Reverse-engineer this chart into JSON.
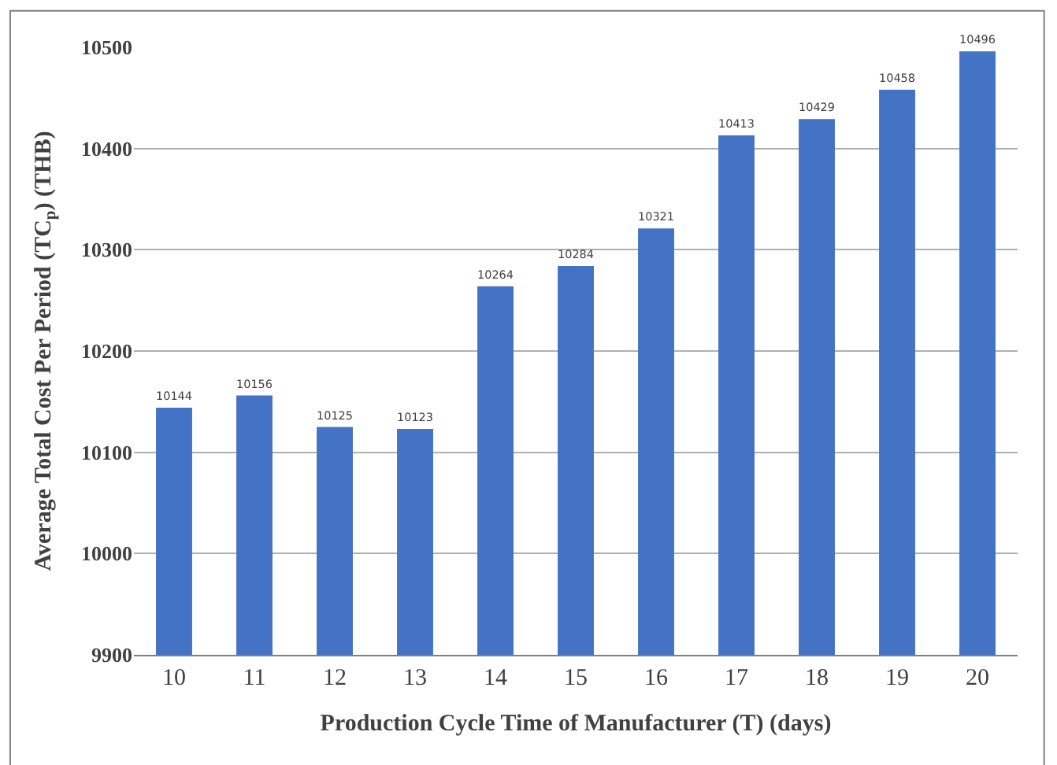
{
  "chart_data": {
    "type": "bar",
    "xlabel": "Production Cycle Time of Manufacturer (T) (days)",
    "ylabel": "Average Total Cost Per Period (TC$_{p}$) (THB)",
    "categories": [
      "10",
      "11",
      "12",
      "13",
      "14",
      "15",
      "16",
      "17",
      "18",
      "19",
      "20"
    ],
    "values": [
      10144,
      10156,
      10125,
      10123,
      10264,
      10284,
      10321,
      10413,
      10429,
      10458,
      10496
    ],
    "color": "#4472c4",
    "ylim": [
      9900,
      10500
    ],
    "yticks": [
      9900,
      10000,
      10100,
      10200,
      10300,
      10400,
      10500
    ],
    "grid": "y",
    "data_labels": true
  }
}
